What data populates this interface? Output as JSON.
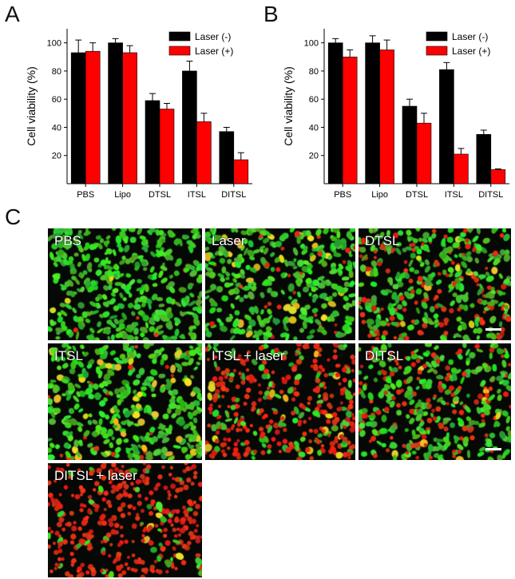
{
  "panels": {
    "A": {
      "letter": "A"
    },
    "B": {
      "letter": "B"
    },
    "C": {
      "letter": "C"
    }
  },
  "legend": {
    "minus": "Laser (-)",
    "plus": "Laser (+)"
  },
  "colors": {
    "laser_minus": "#000000",
    "laser_plus": "#ff0000"
  },
  "chart_data": [
    {
      "type": "bar",
      "panel": "A",
      "ylabel": "Cell viability (%)",
      "xlabel": "",
      "ylim": [
        0,
        110
      ],
      "yticks": [
        20,
        40,
        60,
        80,
        100
      ],
      "categories": [
        "PBS",
        "Lipo",
        "DTSL",
        "ITSL",
        "DITSL"
      ],
      "series": [
        {
          "name": "Laser (-)",
          "values": [
            93,
            100,
            59,
            80,
            37
          ],
          "errors": [
            9,
            3,
            5,
            7,
            3
          ]
        },
        {
          "name": "Laser (+)",
          "values": [
            94,
            93,
            53,
            44,
            17
          ],
          "errors": [
            6,
            5,
            4,
            6,
            5
          ]
        }
      ],
      "legend_position": "top-right"
    },
    {
      "type": "bar",
      "panel": "B",
      "ylabel": "Cell viability (%)",
      "xlabel": "",
      "ylim": [
        0,
        110
      ],
      "yticks": [
        20,
        40,
        60,
        80,
        100
      ],
      "categories": [
        "PBS",
        "Lipo",
        "DTSL",
        "ITSL",
        "DITSL"
      ],
      "series": [
        {
          "name": "Laser (-)",
          "values": [
            100,
            100,
            55,
            81,
            35
          ],
          "errors": [
            3,
            5,
            5,
            5,
            3
          ]
        },
        {
          "name": "Laser (+)",
          "values": [
            90,
            95,
            43,
            21,
            10
          ],
          "errors": [
            5,
            7,
            7,
            4,
            0.5
          ]
        }
      ],
      "legend_position": "top-right"
    }
  ],
  "micrographs": [
    {
      "label": "PBS",
      "red": 0.01,
      "yellow": 0.01,
      "scale_bar": false
    },
    {
      "label": "Laser",
      "red": 0.06,
      "yellow": 0.06,
      "scale_bar": false
    },
    {
      "label": "DTSL",
      "red": 0.35,
      "yellow": 0.03,
      "scale_bar": true
    },
    {
      "label": "ITSL",
      "red": 0.03,
      "yellow": 0.09,
      "scale_bar": false
    },
    {
      "label": "ITSL + laser",
      "red": 0.72,
      "yellow": 0.02,
      "scale_bar": false
    },
    {
      "label": "DITSL",
      "red": 0.33,
      "yellow": 0.02,
      "scale_bar": true
    },
    {
      "label": "DITSL + laser",
      "red": 0.88,
      "yellow": 0.01,
      "scale_bar": false
    }
  ]
}
